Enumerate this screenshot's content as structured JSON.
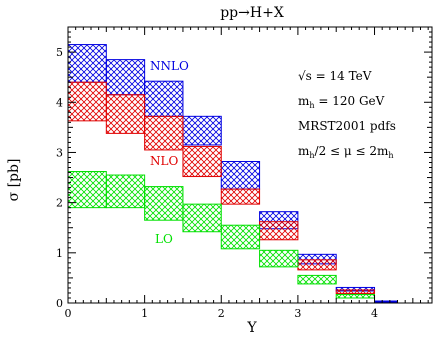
{
  "chart_data": {
    "type": "bar",
    "title": "pp→H+X",
    "xlabel": "Y",
    "ylabel": "σ [pb]",
    "xlim": [
      0,
      4.75
    ],
    "ylim": [
      0,
      5.5
    ],
    "x_ticks": [
      0,
      1,
      2,
      3,
      4
    ],
    "y_ticks": [
      0,
      1,
      2,
      3,
      4,
      5
    ],
    "grid": false,
    "bin_edges": [
      0,
      0.5,
      1.0,
      1.5,
      2.0,
      2.5,
      3.0,
      3.5,
      4.0
    ],
    "series": [
      {
        "name": "NNLO",
        "color": "#0000e0",
        "band_low": [
          4.4,
          4.15,
          3.72,
          3.15,
          2.27,
          1.48,
          0.78,
          0.24
        ],
        "band_high": [
          5.15,
          4.85,
          4.42,
          3.72,
          2.82,
          1.82,
          0.97,
          0.31
        ]
      },
      {
        "name": "NLO",
        "color": "#e00000",
        "band_low": [
          3.63,
          3.38,
          3.05,
          2.52,
          1.97,
          1.26,
          0.66,
          0.19
        ],
        "band_high": [
          4.4,
          4.15,
          3.72,
          3.12,
          2.27,
          1.62,
          0.86,
          0.26
        ]
      },
      {
        "name": "LO",
        "color": "#00e000",
        "band_low": [
          1.9,
          1.9,
          1.65,
          1.42,
          1.08,
          0.72,
          0.38,
          0.1
        ],
        "band_high": [
          2.62,
          2.55,
          2.32,
          1.97,
          1.55,
          1.05,
          0.55,
          0.17
        ]
      }
    ],
    "annotations": [
      "√s = 14 TeV",
      "m_h = 120 GeV",
      "MRST2001 pdfs",
      "m_h/2 ≤ μ ≤ 2m_h"
    ]
  },
  "colors": {
    "axis": "#000000",
    "background": "#ffffff",
    "nnlo": "#0000e0",
    "nlo": "#e00000",
    "lo": "#00e000"
  }
}
